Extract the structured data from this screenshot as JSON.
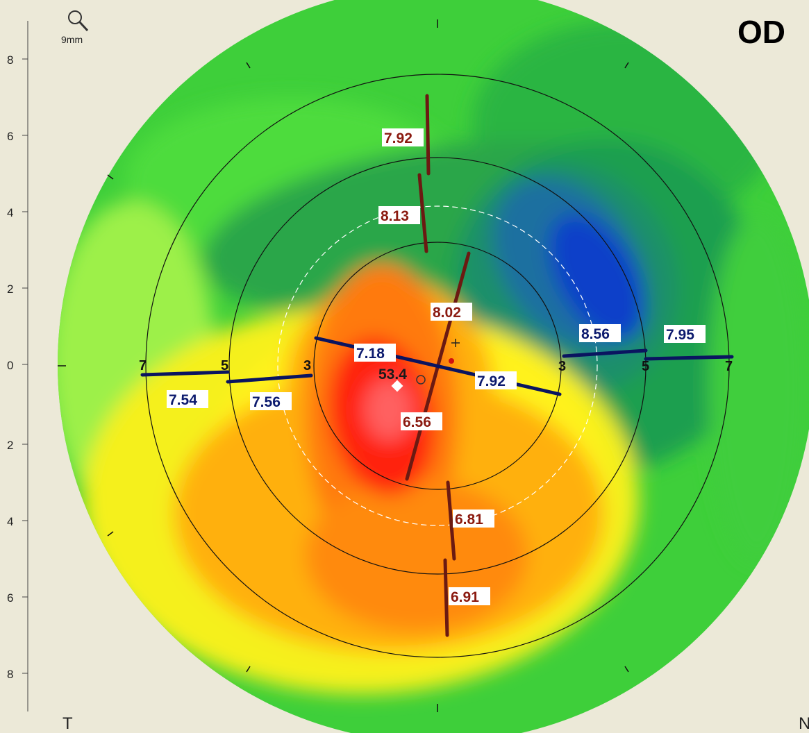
{
  "header": {
    "eye": "OD",
    "zoom_label": "9mm",
    "zoom_icon": "magnifier-icon"
  },
  "axis": {
    "y_ticks": [
      "8",
      "6",
      "4",
      "2",
      "0",
      "2",
      "4",
      "6",
      "8"
    ]
  },
  "corners": {
    "left": "T",
    "right": "N"
  },
  "map": {
    "center_value": "53.4",
    "ring_labels_left": [
      "7",
      "5",
      "3"
    ],
    "ring_labels_right": [
      "3",
      "5",
      "7"
    ]
  },
  "measurements": {
    "vertical_up": [
      "7.92",
      "8.13",
      "8.02"
    ],
    "vertical_down": [
      "6.56",
      "6.81",
      "6.91"
    ],
    "horizontal_left": [
      "7.18",
      "7.56",
      "7.54"
    ],
    "horizontal_right": [
      "7.92",
      "8.56",
      "7.95"
    ]
  },
  "colors": {
    "background": "#ece9d8",
    "red_line": "#6b1a12",
    "blue_line": "#0a1460",
    "red_text": "#8b1a10",
    "blue_text": "#0c1a6e"
  }
}
